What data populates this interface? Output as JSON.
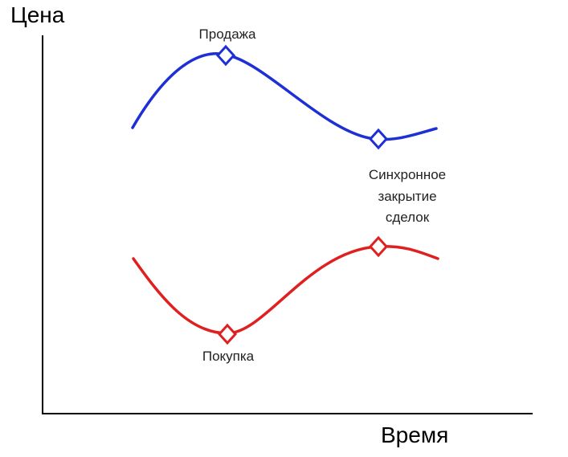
{
  "y_axis_label": "Цена",
  "x_axis_label": "Время",
  "annotations": {
    "sell": "Продажа",
    "buy": "Покупка",
    "close_line1": "Синхронное",
    "close_line2": "закрытие",
    "close_line3": "сделок"
  },
  "colors": {
    "sell_curve": "#1f2fd6",
    "buy_curve": "#e02020",
    "axis": "#000000"
  },
  "icons": {
    "marker": "diamond-marker"
  }
}
